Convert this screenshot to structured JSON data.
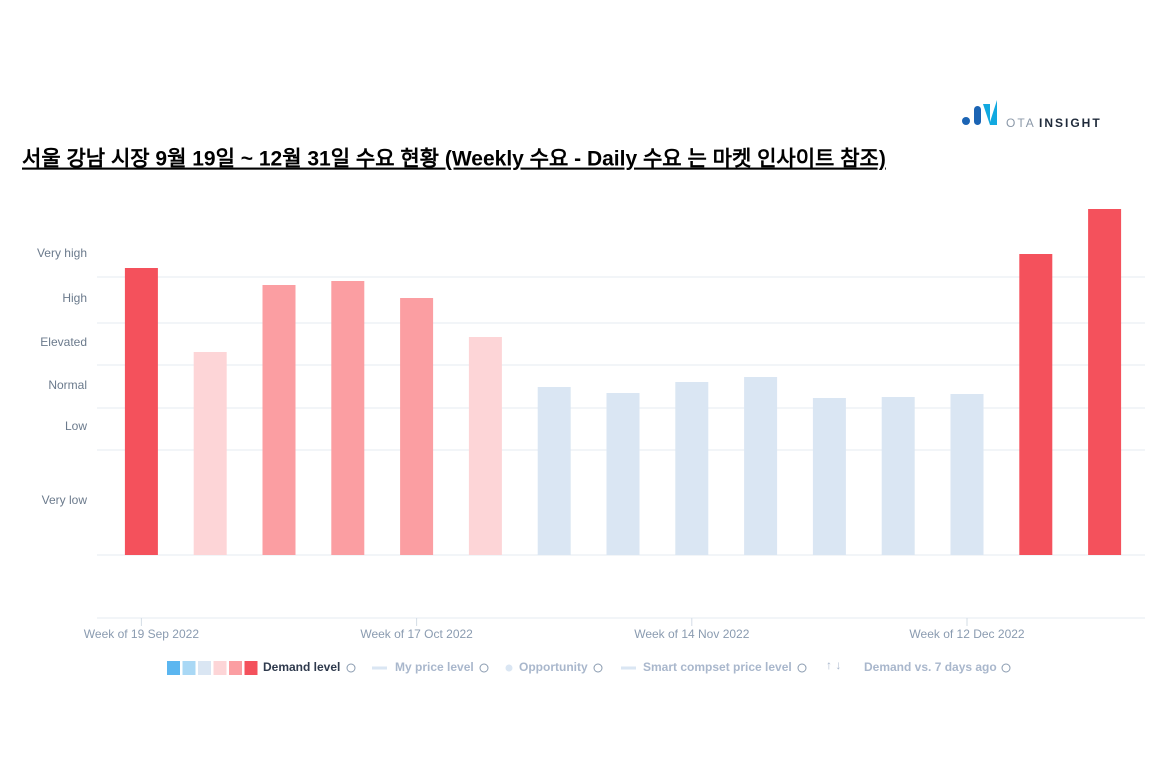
{
  "brand": {
    "prefix": "OTA",
    "name": "INSIGHT"
  },
  "chart_data": {
    "type": "bar",
    "title": "서울 강남 시장 9월 19일 ~ 12월 31일 수요 현황  (Weekly 수요 - Daily 수요 는 마켓 인사이트 참조)",
    "categories": [
      "Week of 19 Sep 2022",
      null,
      null,
      null,
      "Week of 17 Oct 2022",
      null,
      null,
      null,
      "Week of 14 Nov 2022",
      null,
      null,
      null,
      "Week of 12 Dec 2022",
      null,
      null
    ],
    "values": [
      287,
      203,
      270,
      274,
      257,
      218,
      168,
      162,
      173,
      178,
      157,
      158,
      161,
      301,
      346
    ],
    "colors": [
      "#f4515c",
      "#fdd5d7",
      "#fb9ea2",
      "#fb9ea2",
      "#fb9ea2",
      "#fdd5d7",
      "#dae6f3",
      "#dae6f3",
      "#dae6f3",
      "#dae6f3",
      "#dae6f3",
      "#dae6f3",
      "#dae6f3",
      "#f4515c",
      "#f4515c"
    ],
    "ylim": [
      0,
      350
    ],
    "yticks": [
      {
        "value": 54,
        "label": "Very low"
      },
      {
        "value": 128,
        "label": "Low"
      },
      {
        "value": 169,
        "label": "Normal"
      },
      {
        "value": 212,
        "label": "Elevated"
      },
      {
        "value": 256,
        "label": "High"
      },
      {
        "value": 301,
        "label": "Very high"
      }
    ],
    "grid_lines": [
      105,
      147,
      190,
      232,
      278
    ],
    "grid": true,
    "legend": {
      "swatches": [
        "#5bb6f0",
        "#a9d8f5",
        "#dae6f3",
        "#fdd5d7",
        "#fb9ea2",
        "#f4515c"
      ],
      "items": [
        "Demand level",
        "My price level",
        "Opportunity",
        "Smart compset price level",
        "Demand vs. 7 days ago"
      ],
      "arrows": "↑  ↓"
    }
  }
}
